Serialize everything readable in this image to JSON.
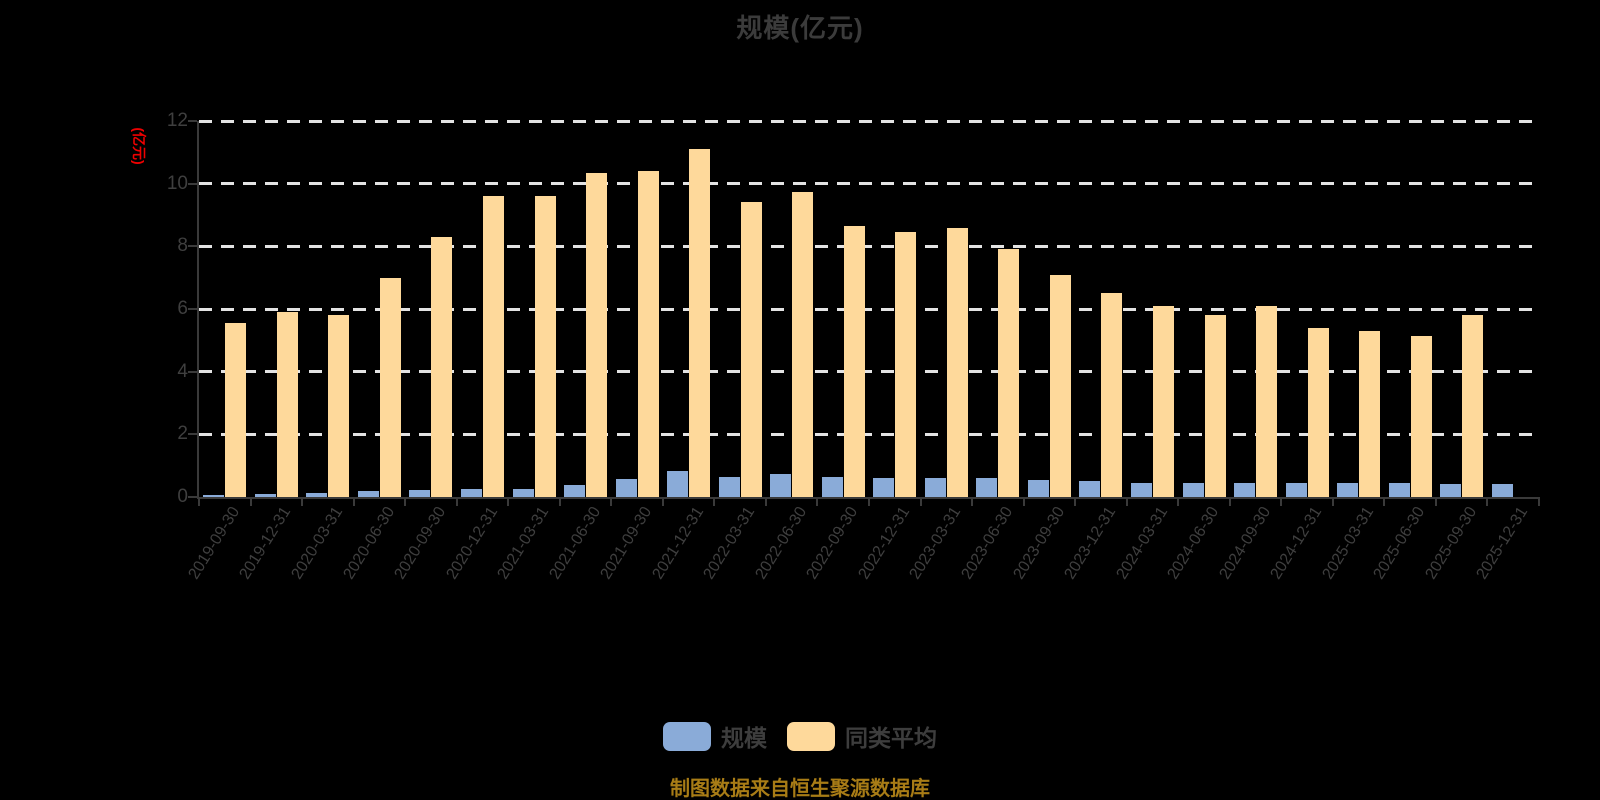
{
  "title": "规模(亿元)",
  "source_note": "制图数据来自恒生聚源数据库",
  "colors": {
    "background": "#000000",
    "title_gray": "#3b3b3b",
    "axis_line": "#3a3a3a",
    "tick_label_gray": "#3f3f3f",
    "gridline": "#e3e3e3",
    "series_scale_blue": "#8AABD8",
    "series_peer_orange": "#FED99B",
    "y_axis_name_red": "#ee0000",
    "source_note_gold": "#A87C16"
  },
  "chart_data": {
    "type": "bar",
    "title": "规模(亿元)",
    "xlabel": "",
    "ylabel": "(亿元)",
    "ylim": [
      0,
      12
    ],
    "y_ticks": [
      0,
      2,
      4,
      6,
      8,
      10,
      12
    ],
    "grid": "horizontal-dashed",
    "legend_position": "bottom",
    "categories": [
      "2019-09-30",
      "2019-12-31",
      "2020-03-31",
      "2020-06-30",
      "2020-09-30",
      "2020-12-31",
      "2021-03-31",
      "2021-06-30",
      "2021-09-30",
      "2021-12-31",
      "2022-03-31",
      "2022-06-30",
      "2022-09-30",
      "2022-12-31",
      "2023-03-31",
      "2023-06-30",
      "2023-09-30",
      "2023-12-31",
      "2024-03-31",
      "2024-06-30",
      "2024-09-30",
      "2024-12-31",
      "2025-03-31",
      "2025-06-30",
      "2025-09-30",
      "2025-12-31"
    ],
    "series": [
      {
        "name": "规模",
        "color": "#8AABD8",
        "values": [
          0.06,
          0.09,
          0.12,
          0.18,
          0.22,
          0.25,
          0.25,
          0.38,
          0.58,
          0.82,
          0.63,
          0.73,
          0.63,
          0.6,
          0.62,
          0.6,
          0.55,
          0.5,
          0.46,
          0.45,
          0.46,
          0.45,
          0.45,
          0.45,
          0.42,
          0.4
        ]
      },
      {
        "name": "同类平均",
        "color": "#FED99B",
        "values": [
          5.55,
          5.9,
          5.8,
          7.0,
          8.3,
          9.6,
          9.6,
          10.35,
          10.4,
          11.1,
          9.4,
          9.75,
          8.65,
          8.45,
          8.6,
          7.9,
          7.1,
          6.5,
          6.1,
          5.8,
          6.1,
          5.4,
          5.3,
          5.15,
          5.8,
          null
        ]
      }
    ]
  }
}
